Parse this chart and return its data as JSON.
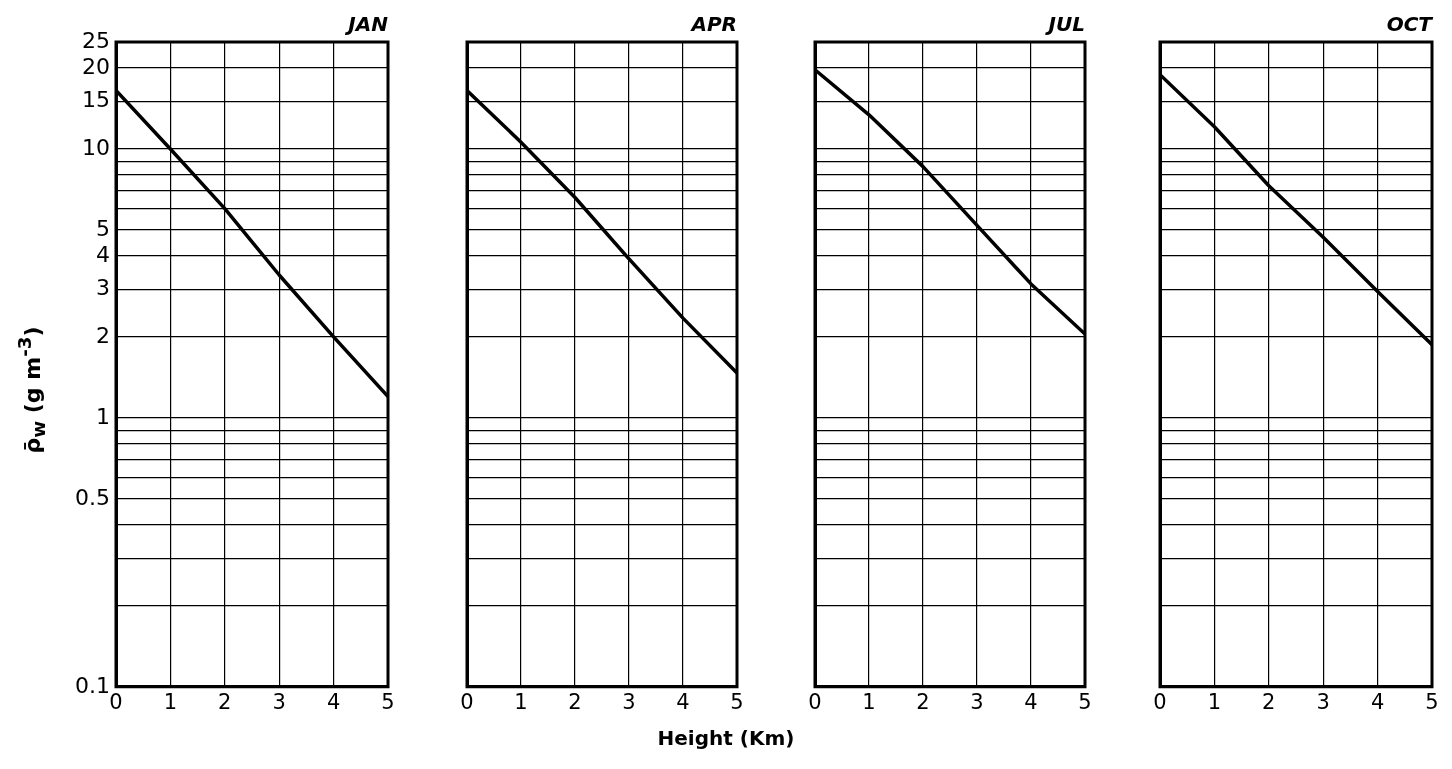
{
  "chart_data": [
    {
      "type": "line",
      "title": "JAN",
      "ylabel": "ρ̄$_{w}$ (g m$^{-3}$)",
      "x": [
        0,
        1,
        2,
        3,
        4,
        5
      ],
      "values": [
        16.5,
        10,
        6,
        3.4,
        2,
        1.2
      ],
      "color": "#000000",
      "log": "y",
      "grid": true,
      "marker": "none",
      "line_style": "solid",
      "xlim": [
        0,
        5
      ],
      "xticks": [
        0,
        1,
        2,
        3,
        4,
        5
      ],
      "ylim": [
        0.1,
        25
      ],
      "yticks": [
        0.1,
        {
          "value": 0.2,
          "label": null
        },
        {
          "value": 0.3,
          "label": null
        },
        {
          "value": 0.4,
          "label": null
        },
        0.5,
        {
          "value": 0.6,
          "label": null
        },
        {
          "value": 0.7,
          "label": null
        },
        {
          "value": 0.8,
          "label": null
        },
        {
          "value": 0.9,
          "label": null
        },
        1,
        2,
        3,
        4,
        5,
        {
          "value": 6,
          "label": null
        },
        {
          "value": 7,
          "label": null
        },
        {
          "value": 8,
          "label": null
        },
        {
          "value": 9,
          "label": null
        },
        10,
        15,
        20,
        25
      ]
    },
    {
      "type": "line",
      "title": "APR",
      "xlabel": "Height (Km)",
      "x": [
        0,
        1,
        2,
        3,
        4,
        5
      ],
      "values": [
        16.5,
        10.6,
        6.6,
        3.9,
        2.35,
        1.47
      ],
      "color": "#000000",
      "log": "y",
      "grid": true,
      "marker": "none",
      "line_style": "solid",
      "tick_labels": "x",
      "xlim": [
        0,
        5
      ],
      "xticks": [
        0,
        1,
        2,
        3,
        4,
        5
      ],
      "ylim": [
        0.1,
        25
      ],
      "yticks": [
        0.1,
        {
          "value": 0.2,
          "label": null
        },
        {
          "value": 0.3,
          "label": null
        },
        {
          "value": 0.4,
          "label": null
        },
        0.5,
        {
          "value": 0.6,
          "label": null
        },
        {
          "value": 0.7,
          "label": null
        },
        {
          "value": 0.8,
          "label": null
        },
        {
          "value": 0.9,
          "label": null
        },
        1,
        2,
        3,
        4,
        5,
        {
          "value": 6,
          "label": null
        },
        {
          "value": 7,
          "label": null
        },
        {
          "value": 8,
          "label": null
        },
        {
          "value": 9,
          "label": null
        },
        10,
        15,
        20,
        25
      ]
    },
    {
      "type": "line",
      "title": "JUL",
      "x": [
        0,
        1,
        2,
        3,
        4,
        5
      ],
      "values": [
        19.7,
        13.4,
        8.6,
        5.2,
        3.15,
        2.05
      ],
      "color": "#000000",
      "log": "y",
      "grid": true,
      "marker": "none",
      "line_style": "solid",
      "tick_labels": "x",
      "xlim": [
        0,
        5
      ],
      "xticks": [
        0,
        1,
        2,
        3,
        4,
        5
      ],
      "ylim": [
        0.1,
        25
      ],
      "yticks": [
        0.1,
        {
          "value": 0.2,
          "label": null
        },
        {
          "value": 0.3,
          "label": null
        },
        {
          "value": 0.4,
          "label": null
        },
        0.5,
        {
          "value": 0.6,
          "label": null
        },
        {
          "value": 0.7,
          "label": null
        },
        {
          "value": 0.8,
          "label": null
        },
        {
          "value": 0.9,
          "label": null
        },
        1,
        2,
        3,
        4,
        5,
        {
          "value": 6,
          "label": null
        },
        {
          "value": 7,
          "label": null
        },
        {
          "value": 8,
          "label": null
        },
        {
          "value": 9,
          "label": null
        },
        10,
        15,
        20,
        25
      ]
    },
    {
      "type": "line",
      "title": "OCT",
      "x": [
        0,
        1,
        2,
        3,
        4,
        5
      ],
      "values": [
        18.9,
        12.1,
        7.3,
        4.7,
        2.95,
        1.87
      ],
      "color": "#000000",
      "log": "y",
      "grid": true,
      "marker": "none",
      "line_style": "solid",
      "tick_labels": "x",
      "xlim": [
        0,
        5
      ],
      "xticks": [
        0,
        1,
        2,
        3,
        4,
        5
      ],
      "ylim": [
        0.1,
        25
      ],
      "yticks": [
        0.1,
        {
          "value": 0.2,
          "label": null
        },
        {
          "value": 0.3,
          "label": null
        },
        {
          "value": 0.4,
          "label": null
        },
        0.5,
        {
          "value": 0.6,
          "label": null
        },
        {
          "value": 0.7,
          "label": null
        },
        {
          "value": 0.8,
          "label": null
        },
        {
          "value": 0.9,
          "label": null
        },
        1,
        2,
        3,
        4,
        5,
        {
          "value": 6,
          "label": null
        },
        {
          "value": 7,
          "label": null
        },
        {
          "value": 8,
          "label": null
        },
        {
          "value": 9,
          "label": null
        },
        10,
        15,
        20,
        25
      ]
    }
  ]
}
